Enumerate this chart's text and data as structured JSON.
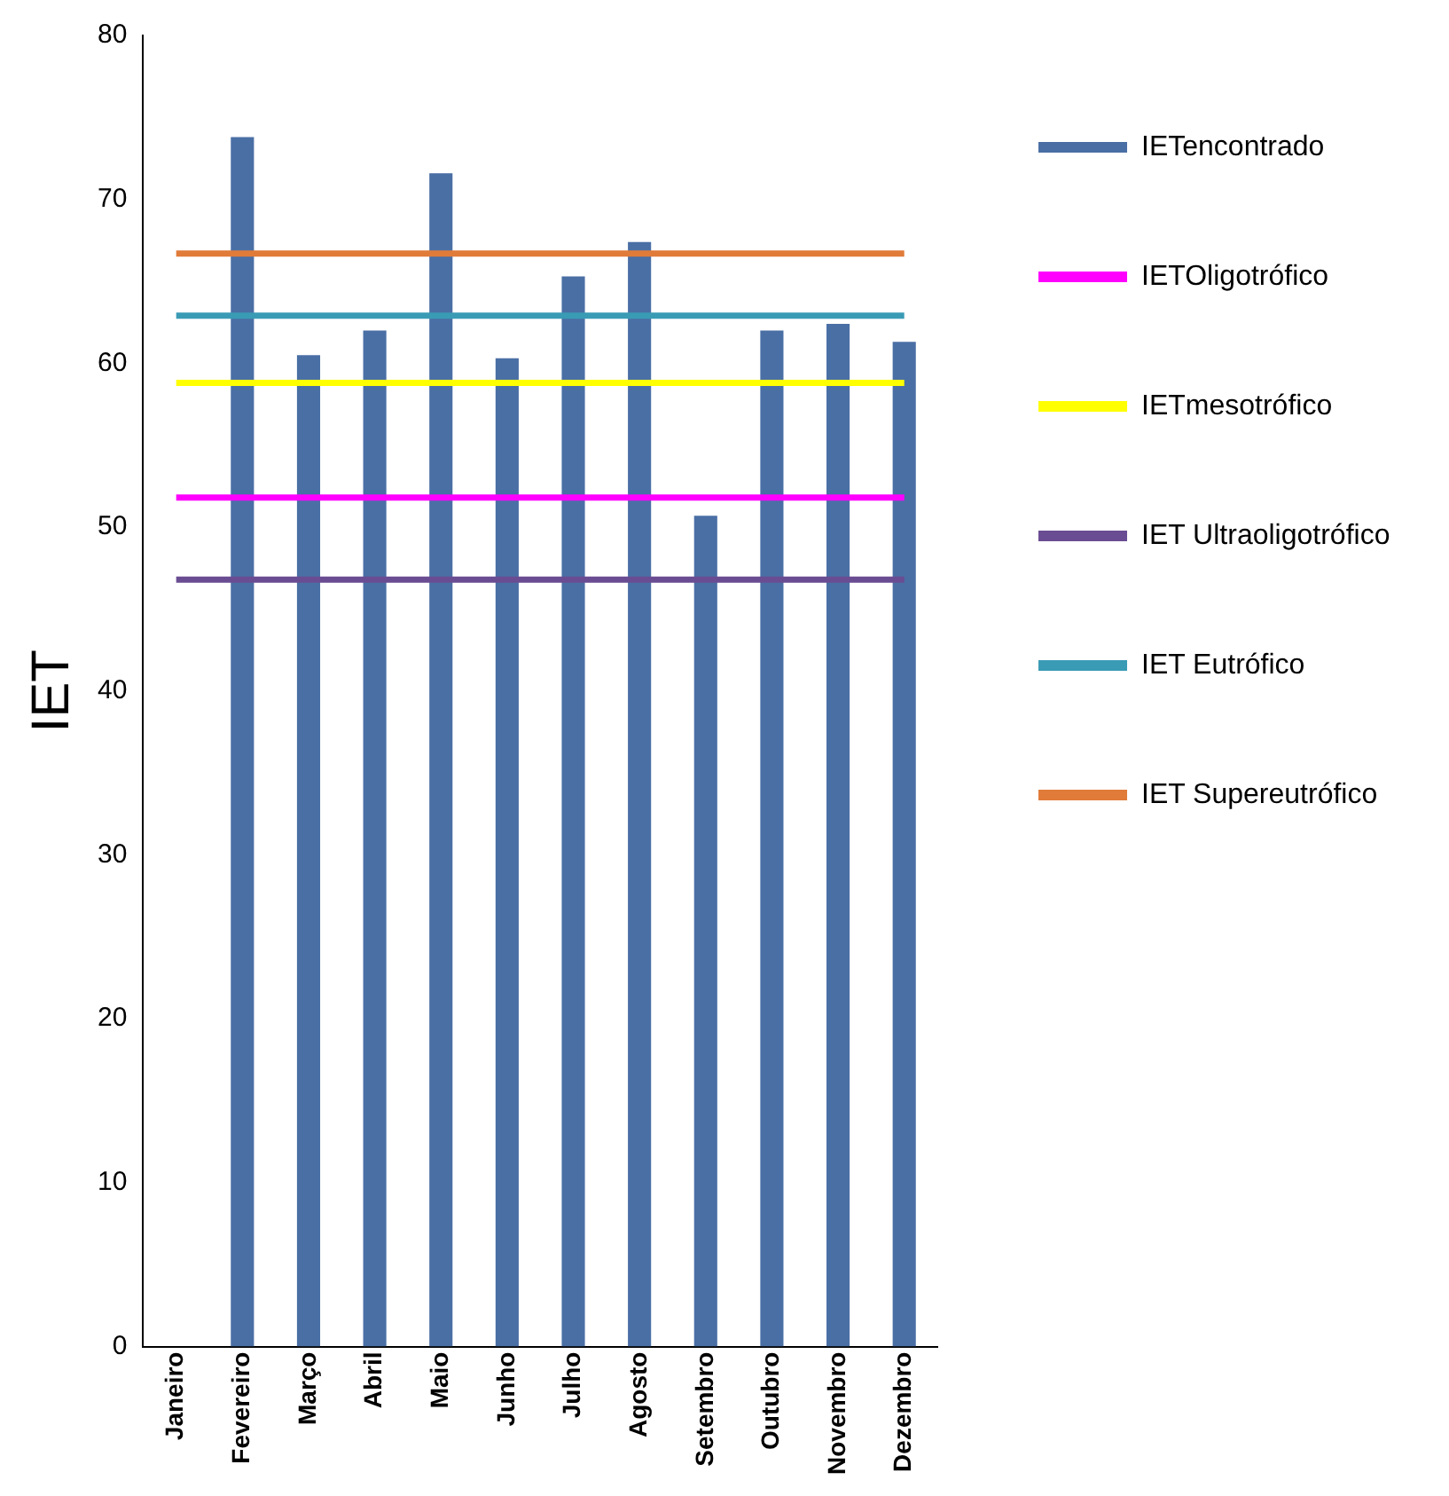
{
  "chart_data": {
    "type": "bar",
    "ylabel": "IET",
    "categories": [
      "Janeiro",
      "Fevereiro",
      "Março",
      "Abril",
      "Maio",
      "Junho",
      "Julho",
      "Agosto",
      "Setembro",
      "Outubro",
      "Novembro",
      "Dezembro"
    ],
    "ylim": [
      0,
      80
    ],
    "yticks": [
      0,
      10,
      20,
      30,
      40,
      50,
      60,
      70,
      80
    ],
    "grid": false,
    "legend": "right",
    "marker": "none",
    "line_style": "solid",
    "series": [
      {
        "name": "IETencontrado",
        "color": "#4a6fa5",
        "values": [
          null,
          73.8,
          60.5,
          62,
          71.6,
          60.3,
          65.3,
          67.4,
          50.7,
          62,
          62.4,
          61.3
        ]
      },
      {
        "name": "IETOligotrófico",
        "type": "line",
        "color": "#ff00ff",
        "values": [
          51.8,
          51.8,
          51.8,
          51.8,
          51.8,
          51.8,
          51.8,
          51.8,
          51.8,
          51.8,
          51.8,
          51.8
        ]
      },
      {
        "name": "IETmesotrófico",
        "type": "line",
        "color": "#ffff00",
        "values": [
          58.8,
          58.8,
          58.8,
          58.8,
          58.8,
          58.8,
          58.8,
          58.8,
          58.8,
          58.8,
          58.8,
          58.8
        ]
      },
      {
        "name": "IET Ultraoligotrófico",
        "type": "line",
        "color": "#6a4c93",
        "values": [
          46.8,
          46.8,
          46.8,
          46.8,
          46.8,
          46.8,
          46.8,
          46.8,
          46.8,
          46.8,
          46.8,
          46.8
        ]
      },
      {
        "name": "IET Eutrófico",
        "type": "line",
        "color": "#3a9bb5",
        "values": [
          62.9,
          62.9,
          62.9,
          62.9,
          62.9,
          62.9,
          62.9,
          62.9,
          62.9,
          62.9,
          62.9,
          62.9
        ]
      },
      {
        "name": "IET Supereutrófico",
        "type": "line",
        "color": "#e07b39",
        "values": [
          66.7,
          66.7,
          66.7,
          66.7,
          66.7,
          66.7,
          66.7,
          66.7,
          66.7,
          66.7,
          66.7,
          66.7
        ]
      }
    ]
  }
}
